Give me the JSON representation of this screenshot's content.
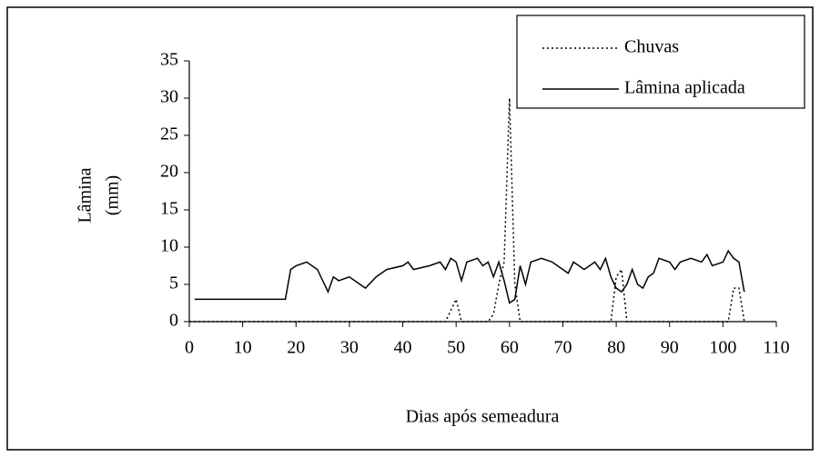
{
  "chart_data": {
    "type": "line",
    "xlabel": "Dias após semeadura",
    "ylabel": [
      "Lâmina",
      "(mm)"
    ],
    "xlim": [
      0,
      110
    ],
    "xticks": [
      0,
      10,
      20,
      30,
      40,
      50,
      60,
      70,
      80,
      90,
      100,
      110
    ],
    "ylim": [
      0,
      35
    ],
    "yticks": [
      0,
      5,
      10,
      15,
      20,
      25,
      30,
      35
    ],
    "legend": "upper right",
    "series": [
      {
        "name": "Chuvas",
        "color": "#000000",
        "dash": "dotted",
        "x": [
          0,
          48,
          49,
          50,
          51,
          56,
          57,
          58,
          59,
          60,
          61,
          62,
          79,
          80,
          81,
          82,
          101,
          102,
          103,
          104
        ],
        "values": [
          0,
          0,
          1.5,
          3,
          0,
          0,
          1,
          5,
          8,
          30,
          5,
          0,
          0,
          6,
          7,
          0,
          0,
          4.5,
          4.5,
          0
        ]
      },
      {
        "name": "Lâmina aplicada",
        "color": "#000000",
        "dash": "solid",
        "x": [
          1,
          18,
          19,
          20,
          22,
          24,
          26,
          27,
          28,
          30,
          32,
          33,
          35,
          37,
          40,
          41,
          42,
          45,
          47,
          48,
          49,
          50,
          51,
          52,
          54,
          55,
          56,
          57,
          58,
          59,
          60,
          61,
          62,
          63,
          64,
          66,
          68,
          70,
          71,
          72,
          74,
          76,
          77,
          78,
          79,
          80,
          81,
          82,
          83,
          84,
          85,
          86,
          87,
          88,
          90,
          91,
          92,
          94,
          96,
          97,
          98,
          100,
          101,
          102,
          103,
          104
        ],
        "values": [
          3,
          3,
          7,
          7.5,
          8,
          7,
          4,
          6,
          5.5,
          6,
          5,
          4.5,
          6,
          7,
          7.5,
          8,
          7,
          7.5,
          8,
          7,
          8.5,
          8,
          5.5,
          8,
          8.5,
          7.5,
          8,
          6,
          8,
          5.5,
          2.5,
          3,
          7.5,
          5,
          8,
          8.5,
          8,
          7,
          6.5,
          8,
          7,
          8,
          7,
          8.5,
          6,
          4.5,
          4,
          5,
          7,
          5,
          4.5,
          6,
          6.5,
          8.5,
          8,
          7,
          8,
          8.5,
          8,
          9,
          7.5,
          8,
          9.5,
          8.5,
          8,
          4
        ]
      }
    ]
  }
}
